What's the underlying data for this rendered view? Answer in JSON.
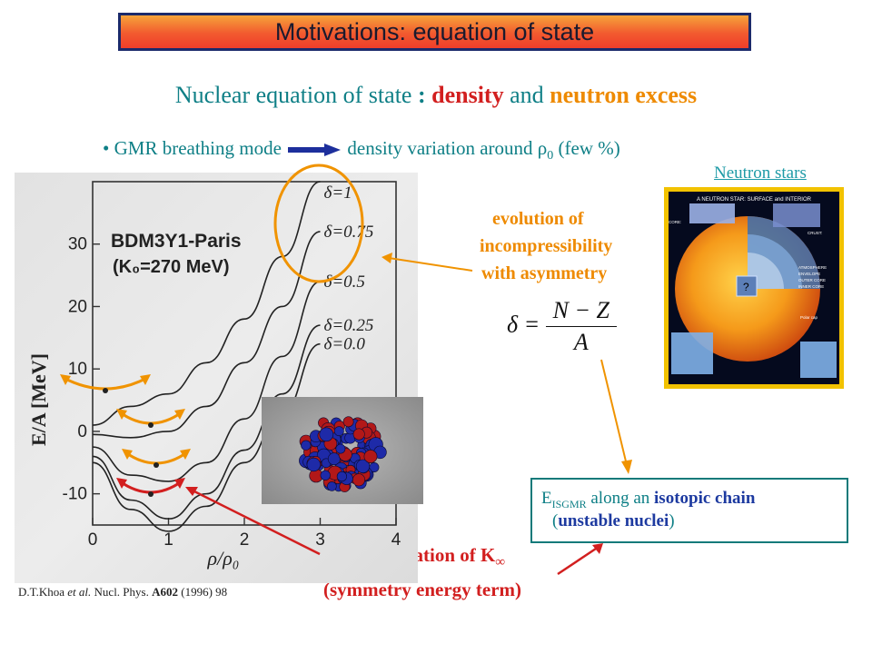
{
  "title": "Motivations: equation of state",
  "subtitle": {
    "part1": "Nuclear equation of state ",
    "colon": ": ",
    "density": "density",
    "and": " and ",
    "neutron_excess": "neutron excess"
  },
  "bullet": {
    "dot": "•",
    "left_text": "GMR  breathing mode",
    "right_text": "density variation around ",
    "rho": "ρ",
    "rho_sub": "0",
    "paren": " (few %)"
  },
  "neutron_stars_label": "Neutron stars",
  "evolution_text": {
    "line1": "evolution of",
    "line2": "incompressibility",
    "line3": "with asymmetry"
  },
  "formula": {
    "lhs": "δ = ",
    "numerator": "N − Z",
    "denominator": "A"
  },
  "isgmr_box": {
    "e": "E",
    "sub": "ISGMR",
    "along": " along an ",
    "isotopic_chain": "isotopic chain",
    "open_paren": "(",
    "unstable_nuclei": "unstable nuclei",
    "close_paren": ")"
  },
  "determination_text": {
    "line1": "determination of K",
    "k_sub": "∞",
    "line2": "(symmetry energy term)"
  },
  "citation": {
    "authors": "D.T.Khoa ",
    "etal": "et al.",
    "journal": "  Nucl. Phys. ",
    "volume": "A602",
    "rest": " (1996) 98"
  },
  "colors": {
    "teal": "#0e7f86",
    "red": "#d21f1f",
    "orange": "#ee8a00",
    "navy": "#1d3aa0"
  },
  "chart_data": {
    "type": "line",
    "title": "BDM3Y1-Paris",
    "subtitle": "(K₀=270 MeV)",
    "xlabel": "ρ/ρ₀",
    "ylabel": "E/A  [MeV]",
    "xlim": [
      0,
      4
    ],
    "ylim": [
      -15,
      40
    ],
    "xticks": [
      "0",
      "1",
      "2",
      "3",
      "4"
    ],
    "yticks": [
      "-10",
      "0",
      "10",
      "20",
      "30"
    ],
    "series": [
      {
        "name": "δ=1",
        "x": [
          0,
          0.5,
          1,
          1.5,
          2,
          2.5,
          3
        ],
        "y": [
          1,
          4,
          6,
          11,
          18,
          28,
          40
        ]
      },
      {
        "name": "δ=0.75",
        "x": [
          0,
          0.5,
          1,
          1.5,
          2,
          2.5,
          3
        ],
        "y": [
          -0.5,
          -1,
          0,
          4,
          11,
          20,
          32
        ]
      },
      {
        "name": "δ=0.5",
        "x": [
          0,
          0.5,
          1,
          1.5,
          2,
          2.5,
          3
        ],
        "y": [
          -2.5,
          -7,
          -8,
          -5,
          2,
          12,
          24
        ]
      },
      {
        "name": "δ=0.25",
        "x": [
          0,
          0.5,
          1,
          1.5,
          2,
          2.5,
          3
        ],
        "y": [
          -4,
          -11,
          -14,
          -10,
          -3,
          6,
          17
        ]
      },
      {
        "name": "δ=0.0",
        "x": [
          0,
          0.5,
          1,
          1.5,
          2,
          2.5,
          3
        ],
        "y": [
          -5,
          -12.5,
          -16,
          -12,
          -5,
          3,
          14
        ]
      }
    ]
  }
}
